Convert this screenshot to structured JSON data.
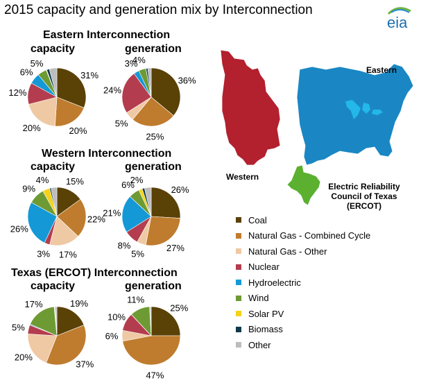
{
  "title": "2015 capacity and generation mix by Interconnection",
  "logo_text": "eia",
  "categories": [
    "Coal",
    "Natural Gas - Combined Cycle",
    "Natural Gas - Other",
    "Nuclear",
    "Hydroelectric",
    "Wind",
    "Solar PV",
    "Biomass",
    "Other"
  ],
  "colors": {
    "Coal": "#5a4106",
    "Natural Gas - Combined Cycle": "#bf7c2e",
    "Natural Gas - Other": "#efc9a4",
    "Nuclear": "#b33d4e",
    "Hydroelectric": "#1499d6",
    "Wind": "#6e9a34",
    "Solar PV": "#f6d21a",
    "Biomass": "#0f3a4b",
    "Other": "#bdbdbd"
  },
  "chart_data": [
    {
      "type": "pie",
      "title": "Eastern Interconnection",
      "subtitle": "capacity",
      "values": [
        31,
        20,
        20,
        12,
        6,
        5,
        0.3,
        1.5,
        4.2
      ],
      "labels": [
        "31%",
        "20%",
        "20%",
        "12%",
        "6%",
        "5%",
        "",
        "",
        ""
      ]
    },
    {
      "type": "pie",
      "title": "Eastern Interconnection",
      "subtitle": "generation",
      "values": [
        36,
        25,
        5,
        24,
        3,
        4,
        0.1,
        1,
        1.9
      ],
      "labels": [
        "36%",
        "25%",
        "5%",
        "24%",
        "3%",
        "4%",
        "",
        "",
        ""
      ]
    },
    {
      "type": "pie",
      "title": "Western Interconnection",
      "subtitle": "capacity",
      "values": [
        15,
        22,
        17,
        3,
        26,
        9,
        4,
        0.8,
        3.2
      ],
      "labels": [
        "15%",
        "22%",
        "17%",
        "3%",
        "26%",
        "9%",
        "4%",
        "",
        ""
      ]
    },
    {
      "type": "pie",
      "title": "Western Interconnection",
      "subtitle": "generation",
      "values": [
        26,
        27,
        5,
        8,
        21,
        6,
        2,
        1.3,
        3.7
      ],
      "labels": [
        "26%",
        "27%",
        "5%",
        "8%",
        "21%",
        "6%",
        "2%",
        "",
        ""
      ]
    },
    {
      "type": "pie",
      "title": "Texas (ERCOT) Interconnection",
      "subtitle": "capacity",
      "values": [
        19,
        37,
        20,
        5,
        0.5,
        17,
        0.2,
        0.3,
        1
      ],
      "labels": [
        "19%",
        "37%",
        "20%",
        "5%",
        "",
        "17%",
        "",
        "",
        ""
      ]
    },
    {
      "type": "pie",
      "title": "Texas (ERCOT) Interconnection",
      "subtitle": "generation",
      "values": [
        25,
        47,
        6,
        10,
        0.1,
        11,
        0.1,
        0.1,
        0.7
      ],
      "labels": [
        "25%",
        "47%",
        "6%",
        "10%",
        "",
        "11%",
        "",
        "",
        ""
      ]
    }
  ],
  "map": {
    "western_label": "Western",
    "eastern_label": "Eastern",
    "ercot_label": "Electric Reliability Council of Texas (ERCOT)",
    "western_color": "#b3202e",
    "eastern_color": "#1a87c4",
    "ercot_color": "#5bb030",
    "lakes_color": "#23b7ea"
  }
}
